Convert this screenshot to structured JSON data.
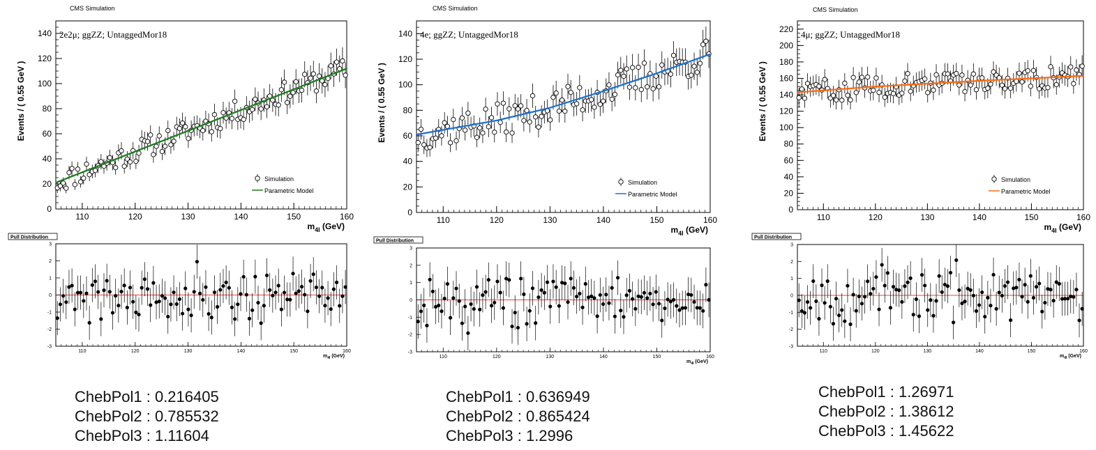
{
  "chart_data": [
    {
      "type": "scatter",
      "header": "CMS Simulation",
      "label": "2e2μ; ggZZ; UntaggedMor18",
      "ylabel": "Events / ( 0.55 GeV )",
      "xlabel_main": "m",
      "xlabel_sub": "4l",
      "xlabel_unit": " (GeV)",
      "xlim": [
        105,
        160
      ],
      "ylim": [
        0,
        150
      ],
      "xticks": [
        110,
        120,
        130,
        140,
        150,
        160
      ],
      "yticks": [
        0,
        20,
        40,
        60,
        80,
        100,
        120,
        140
      ],
      "legend": {
        "simulation": "Simulation",
        "model": "Parametric Model",
        "placement": "bottom-right"
      },
      "model_color": "#1e7d1e",
      "model_line": [
        [
          105,
          21
        ],
        [
          160,
          112
        ]
      ],
      "data_model": {
        "amp": 9,
        "seed": 11
      },
      "pull": {
        "title": "Pull Distribution",
        "ylim": [
          -3,
          3
        ],
        "yticks": [
          -3,
          -2,
          -1,
          0,
          1,
          2,
          3
        ],
        "xlabel_main": "m",
        "xlabel_sub": "4l",
        "xlabel_unit": " (GeV)",
        "line_color": "#ff3b3b",
        "seed": 21
      },
      "coefficients": [
        "ChebPol1 : 0.216405",
        "ChebPol2 : 0.785532",
        "ChebPol3 : 1.11604"
      ]
    },
    {
      "type": "scatter",
      "header": "CMS Simulation",
      "label": "4e; ggZZ; UntaggedMor18",
      "ylabel": "Events / ( 0.55 GeV )",
      "xlabel_main": "m",
      "xlabel_sub": "4l",
      "xlabel_unit": " (GeV)",
      "xlim": [
        105,
        160
      ],
      "ylim": [
        0,
        150
      ],
      "xticks": [
        110,
        120,
        130,
        140,
        150,
        160
      ],
      "yticks": [
        0,
        20,
        40,
        60,
        80,
        100,
        120,
        140
      ],
      "legend": {
        "simulation": "Simulation",
        "model": "Parametric Model",
        "placement": "bottom-right"
      },
      "model_color": "#1a6fd4",
      "model_line": [
        [
          105,
          61
        ],
        [
          120,
          72
        ],
        [
          130,
          82
        ],
        [
          140,
          95
        ],
        [
          150,
          109
        ],
        [
          160,
          124
        ]
      ],
      "data_model": {
        "amp": 13,
        "seed": 37
      },
      "pull": {
        "title": "Pull Distribution",
        "ylim": [
          -3,
          3
        ],
        "yticks": [
          -3,
          -2,
          -1,
          0,
          1,
          2,
          3
        ],
        "xlabel_main": "m",
        "xlabel_sub": "4l",
        "xlabel_unit": " (GeV)",
        "line_color": "#ff3b3b",
        "seed": 43
      },
      "coefficients": [
        "ChebPol1 : 0.636949",
        "ChebPol2 : 0.865424",
        "ChebPol3 : 1.2996"
      ]
    },
    {
      "type": "scatter",
      "header": "CMS Simulation",
      "label": "4μ; ggZZ; UntaggedMor18",
      "ylabel": "Events / ( 0.55 GeV )",
      "xlabel_main": "m",
      "xlabel_sub": "4l",
      "xlabel_unit": " (GeV)",
      "xlim": [
        105,
        160
      ],
      "ylim": [
        0,
        230
      ],
      "xticks": [
        110,
        120,
        130,
        140,
        150,
        160
      ],
      "yticks": [
        0,
        20,
        40,
        60,
        80,
        100,
        120,
        140,
        160,
        180,
        200,
        220
      ],
      "legend": {
        "simulation": "Simulation",
        "model": "Parametric Model",
        "placement": "bottom-right"
      },
      "model_color": "#ff6a13",
      "model_line": [
        [
          105,
          143
        ],
        [
          120,
          150
        ],
        [
          140,
          157
        ],
        [
          160,
          163
        ]
      ],
      "data_model": {
        "amp": 14,
        "seed": 59
      },
      "pull": {
        "title": "Pull Distribution",
        "ylim": [
          -3,
          3
        ],
        "yticks": [
          -3,
          -2,
          -1,
          0,
          1,
          2,
          3
        ],
        "xlabel_main": "m",
        "xlabel_sub": "4l",
        "xlabel_unit": " (GeV)",
        "line_color": "#ff3b3b",
        "seed": 67
      },
      "coefficients": [
        "ChebPol1 : 1.26971",
        "ChebPol2 : 1.38612",
        "ChebPol3 : 1.45622"
      ]
    }
  ]
}
